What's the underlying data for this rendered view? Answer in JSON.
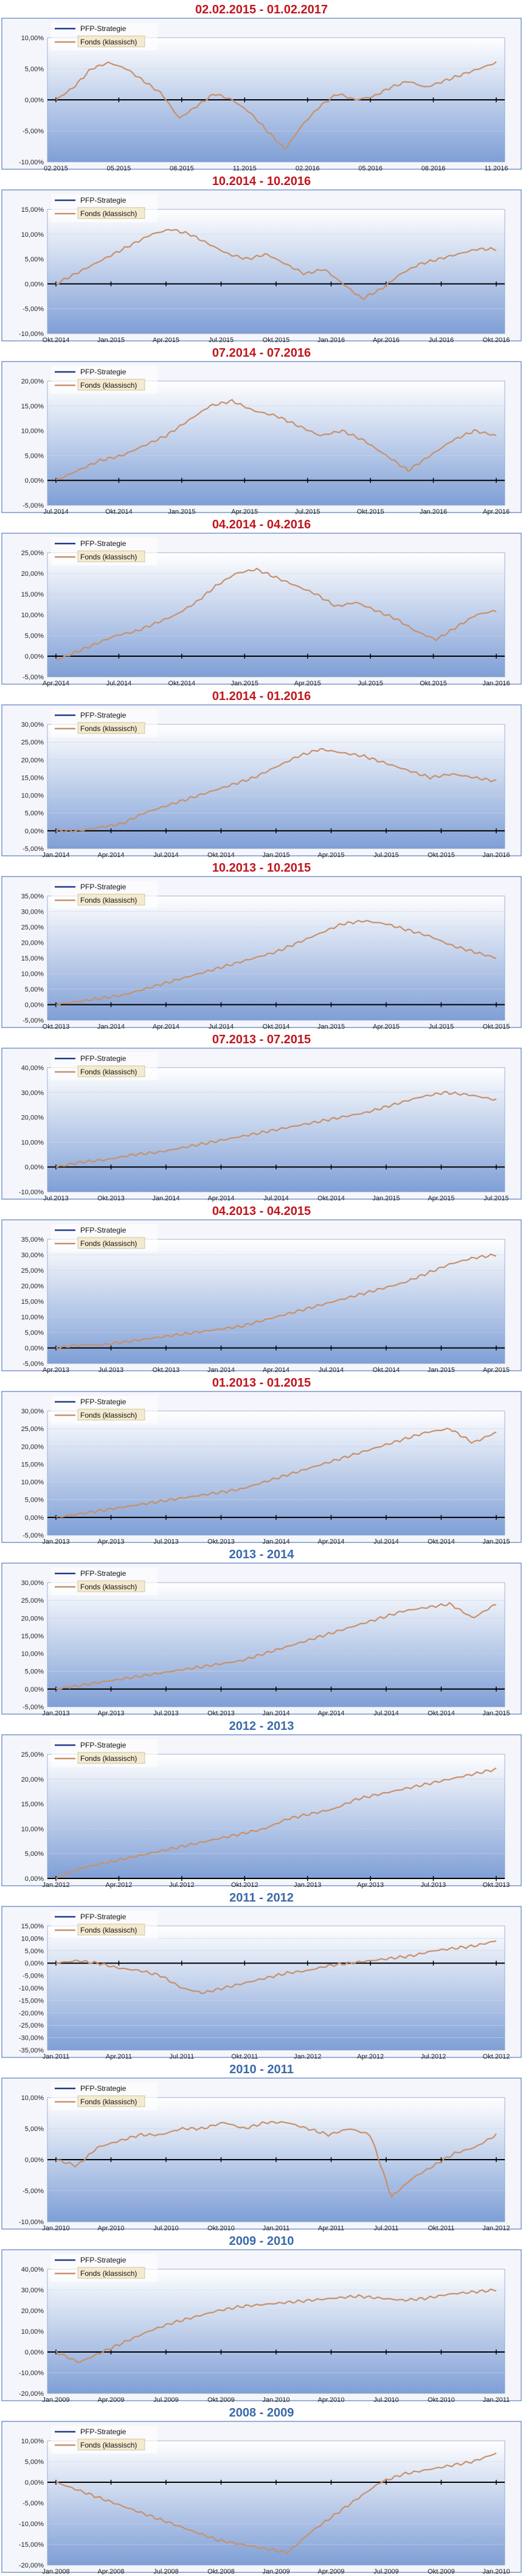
{
  "legend_labels": [
    "PFP-Strategie",
    "Fonds (klassisch)"
  ],
  "colors": {
    "strategie_line": "#1f3a8a",
    "fonds_line": "#c8906a",
    "title_red": "#c0161e",
    "title_blue": "#3a6aa8",
    "plot_top": "#ffffff",
    "plot_bottom": "#7f9fd6",
    "panel_border": "#5a7dbf"
  },
  "chart_data": [
    {
      "type": "line",
      "title": "02.02.2015 - 01.02.2017",
      "title_color": "red",
      "xlabels": [
        "02.2015",
        "05.2015",
        "08.2015",
        "11.2015",
        "02.2016",
        "05.2016",
        "08.2016",
        "11.2016"
      ],
      "yticks": [
        "10,00%",
        "5,00%",
        "0,00%",
        "-5,00%",
        "-10,00%"
      ],
      "ylim": [
        -10,
        10
      ],
      "series": [
        {
          "name": "Fonds (klassisch)",
          "values": [
            0,
            2,
            5,
            6,
            5,
            3,
            1,
            -3,
            -1,
            1,
            0,
            -2,
            -5,
            -8,
            -4,
            -1,
            1,
            0,
            0.5,
            2,
            3,
            2,
            3,
            4,
            5,
            6
          ]
        }
      ]
    },
    {
      "type": "line",
      "title": "10.2014 - 10.2016",
      "title_color": "red",
      "xlabels": [
        "Okt.2014",
        "Jan.2015",
        "Apr.2015",
        "Jul.2015",
        "Okt.2015",
        "Jan.2016",
        "Apr.2016",
        "Jul.2016",
        "Okt.2016"
      ],
      "yticks": [
        "15,00%",
        "10,00%",
        "5,00%",
        "0,00%",
        "-5,00%",
        "-10,00%"
      ],
      "ylim": [
        -10,
        15
      ],
      "series": [
        {
          "name": "Fonds (klassisch)",
          "values": [
            0,
            2,
            4,
            6,
            8,
            10,
            11,
            10,
            8,
            6,
            5,
            6,
            4,
            2,
            3,
            0,
            -3,
            -1,
            2,
            4,
            5,
            6,
            7,
            7
          ]
        }
      ]
    },
    {
      "type": "line",
      "title": "07.2014 - 07.2016",
      "title_color": "red",
      "xlabels": [
        "Jul.2014",
        "Okt.2014",
        "Jan.2015",
        "Apr.2015",
        "Jul.2015",
        "Okt.2015",
        "Jan.2016",
        "Apr.2016"
      ],
      "yticks": [
        "20,00%",
        "15,00%",
        "10,00%",
        "5,00%",
        "0,00%",
        "-5,00%"
      ],
      "ylim": [
        -5,
        20
      ],
      "series": [
        {
          "name": "Fonds (klassisch)",
          "values": [
            0,
            2,
            4,
            5,
            7,
            9,
            12,
            15,
            16,
            14,
            13,
            11,
            9,
            10,
            8,
            5,
            2,
            5,
            8,
            10,
            9
          ]
        }
      ]
    },
    {
      "type": "line",
      "title": "04.2014 - 04.2016",
      "title_color": "red",
      "xlabels": [
        "Apr.2014",
        "Jul.2014",
        "Okt.2014",
        "Jan.2015",
        "Apr.2015",
        "Jul.2015",
        "Okt.2015",
        "Jan.2016"
      ],
      "yticks": [
        "25,00%",
        "20,00%",
        "15,00%",
        "10,00%",
        "5,00%",
        "0,00%",
        "-5,00%"
      ],
      "ylim": [
        -5,
        25
      ],
      "series": [
        {
          "name": "Fonds (klassisch)",
          "values": [
            -1,
            1,
            3,
            5,
            6,
            8,
            10,
            13,
            17,
            20,
            21,
            19,
            17,
            15,
            12,
            13,
            11,
            9,
            6,
            4,
            7,
            10,
            11
          ]
        }
      ]
    },
    {
      "type": "line",
      "title": "01.2014 - 01.2016",
      "title_color": "red",
      "xlabels": [
        "Jan.2014",
        "Apr.2014",
        "Jul.2014",
        "Okt.2014",
        "Jan.2015",
        "Apr.2015",
        "Jul.2015",
        "Okt.2015",
        "Jan.2016"
      ],
      "yticks": [
        "30,00%",
        "25,00%",
        "20,00%",
        "15,00%",
        "10,00%",
        "5,00%",
        "0,00%",
        "-5,00%"
      ],
      "ylim": [
        -5,
        30
      ],
      "series": [
        {
          "name": "Fonds (klassisch)",
          "values": [
            0,
            0,
            1,
            2,
            5,
            7,
            9,
            11,
            13,
            15,
            18,
            21,
            23,
            22,
            21,
            19,
            17,
            15,
            16,
            15,
            14
          ]
        }
      ]
    },
    {
      "type": "line",
      "title": "10.2013 - 10.2015",
      "title_color": "red",
      "xlabels": [
        "Okt.2013",
        "Jan.2014",
        "Apr.2014",
        "Jul.2014",
        "Okt.2014",
        "Jan.2015",
        "Apr.2015",
        "Jul.2015",
        "Okt.2015"
      ],
      "yticks": [
        "35,00%",
        "30,00%",
        "25,00%",
        "20,00%",
        "15,00%",
        "10,00%",
        "5,00%",
        "0,00%",
        "-5,00%"
      ],
      "ylim": [
        -5,
        35
      ],
      "series": [
        {
          "name": "Fonds (klassisch)",
          "values": [
            0,
            1,
            2,
            3,
            5,
            7,
            9,
            11,
            13,
            15,
            17,
            20,
            23,
            26,
            27,
            26,
            24,
            22,
            19,
            17,
            15
          ]
        }
      ]
    },
    {
      "type": "line",
      "title": "07.2013 - 07.2015",
      "title_color": "red",
      "xlabels": [
        "Jul.2013",
        "Okt.2013",
        "Jan.2014",
        "Apr.2014",
        "Jul.2014",
        "Okt.2014",
        "Jan.2015",
        "Apr.2015",
        "Jul.2015"
      ],
      "yticks": [
        "40,00%",
        "30,00%",
        "20,00%",
        "10,00%",
        "0,00%",
        "-10,00%"
      ],
      "ylim": [
        -10,
        40
      ],
      "series": [
        {
          "name": "Fonds (klassisch)",
          "values": [
            0,
            2,
            3,
            5,
            6,
            8,
            10,
            12,
            14,
            16,
            18,
            20,
            22,
            25,
            28,
            30,
            29,
            27
          ]
        }
      ]
    },
    {
      "type": "line",
      "title": "04.2013 - 04.2015",
      "title_color": "red",
      "xlabels": [
        "Apr.2013",
        "Jul.2013",
        "Okt.2013",
        "Jan.2014",
        "Apr.2014",
        "Jul.2014",
        "Okt.2014",
        "Jan.2015",
        "Apr.2015"
      ],
      "yticks": [
        "35,00%",
        "30,00%",
        "25,00%",
        "20,00%",
        "15,00%",
        "10,00%",
        "5,00%",
        "0,00%",
        "-5,00%"
      ],
      "ylim": [
        -5,
        35
      ],
      "series": [
        {
          "name": "Fonds (klassisch)",
          "values": [
            0,
            1,
            1,
            2,
            3,
            4,
            5,
            6,
            7,
            9,
            11,
            13,
            15,
            17,
            19,
            21,
            24,
            27,
            29,
            30
          ]
        }
      ]
    },
    {
      "type": "line",
      "title": "01.2013 - 01.2015",
      "title_color": "red",
      "xlabels": [
        "Jan.2013",
        "Apr.2013",
        "Jul.2013",
        "Okt.2013",
        "Jan.2014",
        "Apr.2014",
        "Jul.2014",
        "Okt.2014",
        "Jan.2015"
      ],
      "yticks": [
        "30,00%",
        "25,00%",
        "20,00%",
        "15,00%",
        "10,00%",
        "5,00%",
        "0,00%",
        "-5,00%"
      ],
      "ylim": [
        -5,
        30
      ],
      "series": [
        {
          "name": "Fonds (klassisch)",
          "values": [
            0,
            1,
            2,
            3,
            4,
            5,
            6,
            7,
            8,
            10,
            12,
            14,
            16,
            18,
            20,
            22,
            24,
            25,
            21,
            24
          ]
        }
      ]
    },
    {
      "type": "line",
      "title": "2013 - 2014",
      "title_color": "blue",
      "xlabels": [
        "Jan.2013",
        "Apr.2013",
        "Jul.2013",
        "Okt.2013",
        "Jan.2014",
        "Apr.2014",
        "Jul.2014",
        "Okt.2014",
        "Jan.2015"
      ],
      "yticks": [
        "30,00%",
        "25,00%",
        "20,00%",
        "15,00%",
        "10,00%",
        "5,00%",
        "0,00%",
        "-5,00%"
      ],
      "ylim": [
        -5,
        30
      ],
      "series": [
        {
          "name": "Fonds (klassisch)",
          "values": [
            0,
            1,
            2,
            3,
            4,
            5,
            6,
            7,
            8,
            10,
            12,
            14,
            16,
            18,
            20,
            22,
            23,
            24,
            20,
            24
          ]
        }
      ]
    },
    {
      "type": "line",
      "title": "2012 - 2013",
      "title_color": "blue",
      "xlabels": [
        "Jan.2012",
        "Apr.2012",
        "Jul.2012",
        "Okt.2012",
        "Jan.2013",
        "Apr.2013",
        "Jul.2013",
        "Okt.2013"
      ],
      "yticks": [
        "25,00%",
        "20,00%",
        "15,00%",
        "10,00%",
        "5,00%",
        "0,00%"
      ],
      "ylim": [
        0,
        25
      ],
      "series": [
        {
          "name": "Fonds (klassisch)",
          "values": [
            0,
            2,
            3,
            4,
            5,
            6,
            7,
            8,
            9,
            10,
            12,
            13,
            14,
            16,
            17,
            18,
            19,
            20,
            21,
            22
          ]
        }
      ]
    },
    {
      "type": "line",
      "title": "2011 - 2012",
      "title_color": "blue",
      "xlabels": [
        "Jan.2011",
        "Apr.2011",
        "Jul.2011",
        "Okt.2011",
        "Jan.2012",
        "Apr.2012",
        "Jul.2012",
        "Okt.2012"
      ],
      "yticks": [
        "15,00%",
        "10,00%",
        "5,00%",
        "0,00%",
        "-5,00%",
        "-10,00%",
        "-15,00%",
        "-20,00%",
        "-25,00%",
        "-30,00%",
        "-35,00%"
      ],
      "ylim": [
        -35,
        15
      ],
      "series": [
        {
          "name": "Fonds (klassisch)",
          "values": [
            0,
            1,
            0,
            -2,
            -3,
            -5,
            -10,
            -12,
            -10,
            -8,
            -6,
            -4,
            -3,
            -1,
            0,
            1,
            2,
            3,
            5,
            6,
            7,
            9
          ]
        }
      ]
    },
    {
      "type": "line",
      "title": "2010 - 2011",
      "title_color": "blue",
      "xlabels": [
        "Jan.2010",
        "Apr.2010",
        "Jul.2010",
        "Okt.2010",
        "Jan.2011",
        "Apr.2011",
        "Jul.2011",
        "Okt.2011",
        "Jan.2012"
      ],
      "yticks": [
        "10,00%",
        "5,00%",
        "0,00%",
        "-5,00%",
        "-10,00%"
      ],
      "ylim": [
        -10,
        10
      ],
      "series": [
        {
          "name": "Fonds (klassisch)",
          "values": [
            0,
            -1,
            2,
            3,
            4,
            4,
            5,
            5,
            6,
            5,
            6,
            6,
            5,
            4,
            5,
            4,
            -6,
            -3,
            -1,
            1,
            2,
            4
          ]
        }
      ]
    },
    {
      "type": "line",
      "title": "2009 - 2010",
      "title_color": "blue",
      "xlabels": [
        "Jan.2009",
        "Apr.2009",
        "Jul.2009",
        "Okt.2009",
        "Jan.2010",
        "Apr.2010",
        "Jul.2010",
        "Okt.2010",
        "Jan.2011"
      ],
      "yticks": [
        "40,00%",
        "30,00%",
        "20,00%",
        "10,00%",
        "0,00%",
        "-10,00%",
        "-20,00%"
      ],
      "ylim": [
        -20,
        40
      ],
      "series": [
        {
          "name": "Fonds (klassisch)",
          "values": [
            0,
            -5,
            0,
            5,
            10,
            14,
            17,
            20,
            22,
            23,
            24,
            25,
            26,
            27,
            26,
            25,
            26,
            28,
            29,
            30
          ]
        }
      ]
    },
    {
      "type": "line",
      "title": "2008 - 2009",
      "title_color": "blue",
      "xlabels": [
        "Jan.2008",
        "Apr.2008",
        "Jul.2008",
        "Okt.2008",
        "Jan.2009",
        "Apr.2009",
        "Jul.2009",
        "Okt.2009",
        "Jan.2010"
      ],
      "yticks": [
        "10,00%",
        "5,00%",
        "0,00%",
        "-5,00%",
        "-10,00%",
        "-15,00%",
        "-20,00%"
      ],
      "ylim": [
        -20,
        10
      ],
      "series": [
        {
          "name": "Fonds (klassisch)",
          "values": [
            0,
            -2,
            -4,
            -6,
            -8,
            -10,
            -12,
            -14,
            -15,
            -16,
            -17,
            -12,
            -8,
            -4,
            0,
            2,
            3,
            4,
            5,
            7
          ]
        }
      ]
    }
  ]
}
